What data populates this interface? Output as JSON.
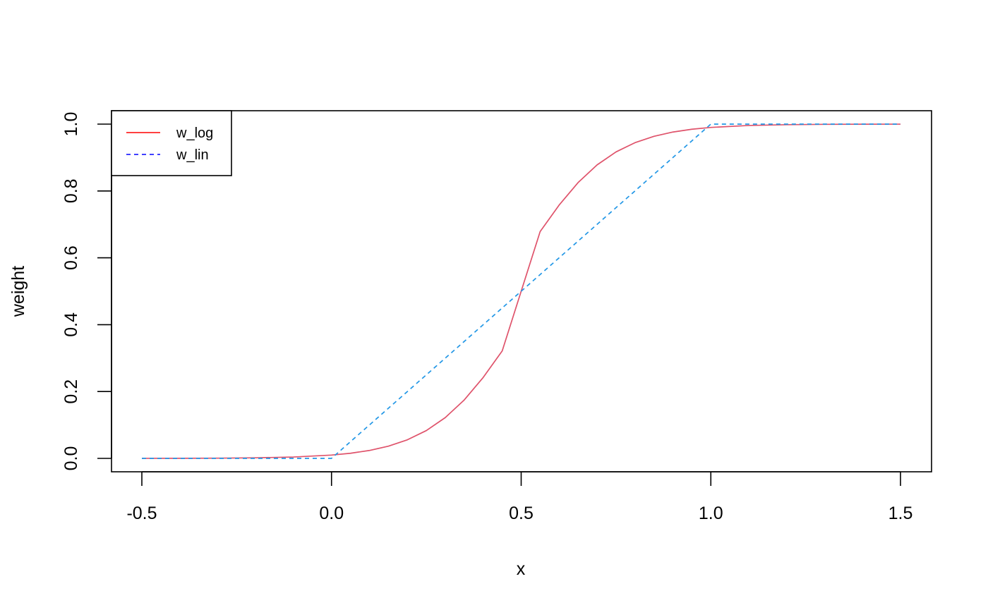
{
  "chart_data": {
    "type": "line",
    "title": "",
    "xlabel": "x",
    "ylabel": "weight",
    "xlim": [
      -0.5,
      1.5
    ],
    "ylim": [
      0,
      1
    ],
    "x_ticks": [
      -0.5,
      0.0,
      0.5,
      1.0,
      1.5
    ],
    "x_tick_labels": [
      "-0.5",
      "0.0",
      "0.5",
      "1.0",
      "1.5"
    ],
    "y_ticks": [
      0.0,
      0.2,
      0.4,
      0.6,
      0.8,
      1.0
    ],
    "y_tick_labels": [
      "0.0",
      "0.2",
      "0.4",
      "0.6",
      "0.8",
      "1.0"
    ],
    "grid": false,
    "legend": {
      "position": "top-left",
      "entries": [
        {
          "label": "w_log",
          "color": "#ff0000",
          "dash": "solid"
        },
        {
          "label": "w_lin",
          "color": "#0000ff",
          "dash": "dashed"
        }
      ]
    },
    "series": [
      {
        "name": "w_log",
        "color": "#df536b",
        "dash": "solid",
        "x": [
          -0.5,
          -0.4,
          -0.3,
          -0.2,
          -0.1,
          0.0,
          0.05,
          0.1,
          0.15,
          0.2,
          0.25,
          0.3,
          0.35,
          0.4,
          0.45,
          0.5,
          0.55,
          0.6,
          0.65,
          0.7,
          0.75,
          0.8,
          0.85,
          0.9,
          0.95,
          1.0,
          1.1,
          1.2,
          1.3,
          1.4,
          1.5
        ],
        "y": [
          0.0001,
          0.0002,
          0.0007,
          0.0017,
          0.0041,
          0.0099,
          0.0153,
          0.0237,
          0.0365,
          0.0556,
          0.0832,
          0.1221,
          0.1749,
          0.2423,
          0.3215,
          0.5,
          0.6785,
          0.7577,
          0.8251,
          0.8779,
          0.9168,
          0.9444,
          0.9635,
          0.9763,
          0.9847,
          0.9901,
          0.9959,
          0.9983,
          0.9993,
          0.9998,
          0.9999
        ]
      },
      {
        "name": "w_lin",
        "color": "#2297e6",
        "dash": "dashed",
        "x": [
          -0.5,
          0.0,
          1.0,
          1.5
        ],
        "y": [
          0.0,
          0.0,
          1.0,
          1.0
        ]
      }
    ]
  }
}
